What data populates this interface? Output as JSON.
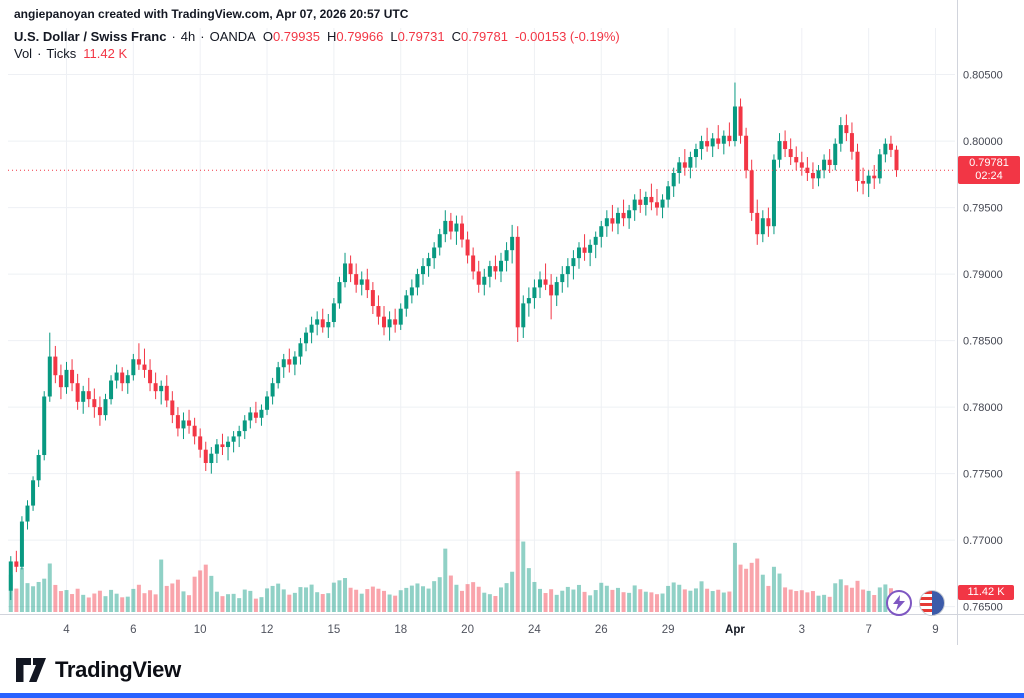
{
  "attribution": "angiepanoyan created with TradingView.com, Apr 07, 2026 20:57 UTC",
  "legend": {
    "symbol_title": "U.S. Dollar / Swiss Franc",
    "dot": "·",
    "interval": "4h",
    "exchange": "OANDA",
    "ohlc": [
      {
        "label": "O",
        "value": "0.79935"
      },
      {
        "label": "H",
        "value": "0.79966"
      },
      {
        "label": "L",
        "value": "0.79731"
      },
      {
        "label": "C",
        "value": "0.79781"
      }
    ],
    "change": "-0.00153 (-0.19%)",
    "volume_label": "Vol",
    "volume_type": "Ticks",
    "volume_value": "11.42 K"
  },
  "price_badge": {
    "price": "0.79781",
    "countdown": "02:24"
  },
  "volume_badge": "11.42 K",
  "logo_text": "TradingView",
  "colors": {
    "up": "#089981",
    "down": "#f23645",
    "grid": "#eef0f4",
    "axis_line": "#d1d4dc",
    "axis_text": "#434651",
    "accent_blue": "#2962ff",
    "badge": "#f23645"
  },
  "chart_data": {
    "type": "candlestick",
    "title": "U.S. Dollar / Swiss Franc · 4h · OANDA",
    "volume_overlay": "Vol · Ticks",
    "ylim": [
      0.7646,
      0.8085
    ],
    "slots": 170,
    "price_line": 0.79781,
    "y_ticks": [
      0.805,
      0.8,
      0.795,
      0.79,
      0.785,
      0.78,
      0.775,
      0.77,
      0.765
    ],
    "x_ticks": [
      {
        "i": 10,
        "l": "4"
      },
      {
        "i": 22,
        "l": "6"
      },
      {
        "i": 34,
        "l": "10"
      },
      {
        "i": 46,
        "l": "12"
      },
      {
        "i": 58,
        "l": "15"
      },
      {
        "i": 70,
        "l": "18"
      },
      {
        "i": 82,
        "l": "20"
      },
      {
        "i": 94,
        "l": "24"
      },
      {
        "i": 106,
        "l": "26"
      },
      {
        "i": 118,
        "l": "29"
      },
      {
        "i": 130,
        "l": "Apr",
        "major": true
      },
      {
        "i": 142,
        "l": "3"
      },
      {
        "i": 154,
        "l": "7"
      },
      {
        "i": 166,
        "l": "9"
      }
    ],
    "candles": [
      [
        0.7662,
        0.7688,
        0.7655,
        0.7684,
        22.6
      ],
      [
        0.7684,
        0.7692,
        0.7676,
        0.768,
        14.2
      ],
      [
        0.768,
        0.7718,
        0.7678,
        0.7714,
        26.8
      ],
      [
        0.7714,
        0.773,
        0.7708,
        0.7726,
        17.5
      ],
      [
        0.7726,
        0.7748,
        0.7722,
        0.7745,
        15.6
      ],
      [
        0.7745,
        0.7768,
        0.774,
        0.7764,
        18.2
      ],
      [
        0.7764,
        0.7812,
        0.776,
        0.7808,
        20.2
      ],
      [
        0.7808,
        0.7856,
        0.7804,
        0.7838,
        29.4
      ],
      [
        0.7838,
        0.7846,
        0.7818,
        0.7824,
        16.4
      ],
      [
        0.7824,
        0.7832,
        0.7806,
        0.7815,
        12.7
      ],
      [
        0.7815,
        0.7834,
        0.781,
        0.7828,
        13.3
      ],
      [
        0.7828,
        0.7836,
        0.7812,
        0.7818,
        10.9
      ],
      [
        0.7818,
        0.7825,
        0.7798,
        0.7804,
        14.1
      ],
      [
        0.7804,
        0.7816,
        0.7795,
        0.7812,
        10.4
      ],
      [
        0.7812,
        0.7822,
        0.78,
        0.7806,
        8.8
      ],
      [
        0.7806,
        0.7814,
        0.7792,
        0.78,
        11.2
      ],
      [
        0.78,
        0.7808,
        0.7786,
        0.7794,
        12.9
      ],
      [
        0.7794,
        0.781,
        0.779,
        0.7806,
        9.6
      ],
      [
        0.7806,
        0.7824,
        0.7802,
        0.782,
        13.4
      ],
      [
        0.782,
        0.7832,
        0.7814,
        0.7826,
        11.1
      ],
      [
        0.7826,
        0.783,
        0.7812,
        0.7818,
        8.9
      ],
      [
        0.7818,
        0.7828,
        0.781,
        0.7824,
        9.3
      ],
      [
        0.7824,
        0.784,
        0.782,
        0.7836,
        14.0
      ],
      [
        0.7836,
        0.7848,
        0.7828,
        0.7832,
        16.5
      ],
      [
        0.7832,
        0.7844,
        0.7822,
        0.7828,
        11.4
      ],
      [
        0.7828,
        0.7836,
        0.7812,
        0.7818,
        13.2
      ],
      [
        0.7818,
        0.7826,
        0.7806,
        0.7812,
        10.7
      ],
      [
        0.7812,
        0.782,
        0.7802,
        0.7816,
        31.8
      ],
      [
        0.7816,
        0.7824,
        0.78,
        0.7805,
        15.8
      ],
      [
        0.7805,
        0.7812,
        0.7788,
        0.7794,
        17.3
      ],
      [
        0.7794,
        0.78,
        0.7778,
        0.7784,
        19.6
      ],
      [
        0.7784,
        0.7796,
        0.7776,
        0.779,
        12.5
      ],
      [
        0.779,
        0.7798,
        0.778,
        0.7786,
        10.2
      ],
      [
        0.7786,
        0.7792,
        0.7772,
        0.7778,
        21.4
      ],
      [
        0.7778,
        0.7784,
        0.7762,
        0.7768,
        25.2
      ],
      [
        0.7768,
        0.7774,
        0.7752,
        0.7758,
        28.7
      ],
      [
        0.7758,
        0.777,
        0.775,
        0.7765,
        21.9
      ],
      [
        0.7765,
        0.7776,
        0.7758,
        0.7772,
        12.3
      ],
      [
        0.7772,
        0.778,
        0.7764,
        0.777,
        9.6
      ],
      [
        0.777,
        0.7778,
        0.776,
        0.7774,
        10.8
      ],
      [
        0.7774,
        0.7782,
        0.7766,
        0.7778,
        11.0
      ],
      [
        0.7778,
        0.7786,
        0.777,
        0.7782,
        8.4
      ],
      [
        0.7782,
        0.7794,
        0.7776,
        0.779,
        13.6
      ],
      [
        0.779,
        0.78,
        0.7784,
        0.7796,
        12.8
      ],
      [
        0.7796,
        0.7804,
        0.7788,
        0.7792,
        8.1
      ],
      [
        0.7792,
        0.7802,
        0.7786,
        0.7798,
        9.0
      ],
      [
        0.7798,
        0.7812,
        0.7794,
        0.7808,
        14.3
      ],
      [
        0.7808,
        0.7822,
        0.7802,
        0.7818,
        15.8
      ],
      [
        0.7818,
        0.7834,
        0.7814,
        0.783,
        17.2
      ],
      [
        0.783,
        0.784,
        0.7822,
        0.7836,
        13.7
      ],
      [
        0.7836,
        0.7844,
        0.7826,
        0.7832,
        10.5
      ],
      [
        0.7832,
        0.7842,
        0.7824,
        0.7838,
        11.6
      ],
      [
        0.7838,
        0.7852,
        0.7832,
        0.7848,
        15.1
      ],
      [
        0.7848,
        0.786,
        0.7842,
        0.7856,
        14.9
      ],
      [
        0.7856,
        0.7868,
        0.7848,
        0.7862,
        16.6
      ],
      [
        0.7862,
        0.7872,
        0.7854,
        0.7866,
        12.0
      ],
      [
        0.7866,
        0.7874,
        0.7856,
        0.786,
        10.9
      ],
      [
        0.786,
        0.787,
        0.7852,
        0.7864,
        11.4
      ],
      [
        0.7864,
        0.7882,
        0.786,
        0.7878,
        17.8
      ],
      [
        0.7878,
        0.7898,
        0.7874,
        0.7894,
        19.2
      ],
      [
        0.7894,
        0.7916,
        0.789,
        0.7908,
        20.6
      ],
      [
        0.7908,
        0.7914,
        0.7894,
        0.79,
        14.7
      ],
      [
        0.79,
        0.7908,
        0.7886,
        0.7892,
        13.5
      ],
      [
        0.7892,
        0.7902,
        0.7884,
        0.7896,
        11.1
      ],
      [
        0.7896,
        0.7904,
        0.7882,
        0.7888,
        13.9
      ],
      [
        0.7888,
        0.7894,
        0.787,
        0.7876,
        15.4
      ],
      [
        0.7876,
        0.7884,
        0.7862,
        0.7868,
        14.1
      ],
      [
        0.7868,
        0.7876,
        0.7854,
        0.786,
        12.8
      ],
      [
        0.786,
        0.7872,
        0.785,
        0.7866,
        10.6
      ],
      [
        0.7866,
        0.7874,
        0.7856,
        0.7862,
        9.9
      ],
      [
        0.7862,
        0.7878,
        0.7858,
        0.7874,
        13.2
      ],
      [
        0.7874,
        0.7888,
        0.7868,
        0.7884,
        14.6
      ],
      [
        0.7884,
        0.7896,
        0.7878,
        0.789,
        16.0
      ],
      [
        0.789,
        0.7904,
        0.7884,
        0.79,
        17.3
      ],
      [
        0.79,
        0.7912,
        0.7892,
        0.7906,
        15.6
      ],
      [
        0.7906,
        0.7916,
        0.7898,
        0.7912,
        14.2
      ],
      [
        0.7912,
        0.7924,
        0.7904,
        0.792,
        18.7
      ],
      [
        0.792,
        0.7934,
        0.7914,
        0.793,
        21.1
      ],
      [
        0.793,
        0.7948,
        0.7924,
        0.794,
        38.4
      ],
      [
        0.794,
        0.7946,
        0.7926,
        0.7932,
        22.1
      ],
      [
        0.7932,
        0.7944,
        0.7922,
        0.7938,
        16.5
      ],
      [
        0.7938,
        0.7944,
        0.792,
        0.7926,
        12.8
      ],
      [
        0.7926,
        0.7932,
        0.7908,
        0.7914,
        16.9
      ],
      [
        0.7914,
        0.792,
        0.7896,
        0.7902,
        18.1
      ],
      [
        0.7902,
        0.791,
        0.7886,
        0.7892,
        15.3
      ],
      [
        0.7892,
        0.7904,
        0.7884,
        0.7898,
        11.7
      ],
      [
        0.7898,
        0.791,
        0.789,
        0.7906,
        10.8
      ],
      [
        0.7906,
        0.7914,
        0.7896,
        0.7902,
        9.7
      ],
      [
        0.7902,
        0.7916,
        0.7894,
        0.791,
        14.9
      ],
      [
        0.791,
        0.7924,
        0.7902,
        0.7918,
        17.5
      ],
      [
        0.7918,
        0.7937,
        0.7908,
        0.7928,
        24.4
      ],
      [
        0.7928,
        0.7936,
        0.7849,
        0.786,
        85.3
      ],
      [
        0.786,
        0.7884,
        0.7852,
        0.7878,
        42.7
      ],
      [
        0.7878,
        0.789,
        0.7868,
        0.7882,
        26.6
      ],
      [
        0.7882,
        0.7896,
        0.7874,
        0.789,
        18.2
      ],
      [
        0.789,
        0.7902,
        0.7882,
        0.7896,
        14.0
      ],
      [
        0.7896,
        0.7908,
        0.7888,
        0.7892,
        11.5
      ],
      [
        0.7892,
        0.79,
        0.7866,
        0.7884,
        13.8
      ],
      [
        0.7884,
        0.7898,
        0.7876,
        0.7894,
        10.4
      ],
      [
        0.7894,
        0.7906,
        0.7886,
        0.79,
        12.9
      ],
      [
        0.79,
        0.7912,
        0.789,
        0.7906,
        15.2
      ],
      [
        0.7906,
        0.7918,
        0.7896,
        0.7912,
        13.6
      ],
      [
        0.7912,
        0.7924,
        0.7904,
        0.792,
        16.4
      ],
      [
        0.792,
        0.793,
        0.791,
        0.7916,
        12.2
      ],
      [
        0.7916,
        0.7926,
        0.7906,
        0.7922,
        10.1
      ],
      [
        0.7922,
        0.7932,
        0.7912,
        0.7928,
        13.3
      ],
      [
        0.7928,
        0.794,
        0.792,
        0.7936,
        17.7
      ],
      [
        0.7936,
        0.7948,
        0.7928,
        0.7942,
        15.9
      ],
      [
        0.7942,
        0.7952,
        0.7932,
        0.7938,
        13.4
      ],
      [
        0.7938,
        0.795,
        0.793,
        0.7946,
        14.6
      ],
      [
        0.7946,
        0.7956,
        0.7936,
        0.7942,
        12.0
      ],
      [
        0.7942,
        0.7952,
        0.7934,
        0.7948,
        11.6
      ],
      [
        0.7948,
        0.796,
        0.794,
        0.7956,
        16.1
      ],
      [
        0.7956,
        0.7964,
        0.7946,
        0.7952,
        13.8
      ],
      [
        0.7952,
        0.7962,
        0.7944,
        0.7958,
        12.3
      ],
      [
        0.7958,
        0.7968,
        0.7948,
        0.7954,
        11.9
      ],
      [
        0.7954,
        0.7964,
        0.7944,
        0.795,
        10.8
      ],
      [
        0.795,
        0.796,
        0.7942,
        0.7956,
        11.2
      ],
      [
        0.7956,
        0.797,
        0.795,
        0.7966,
        15.8
      ],
      [
        0.7966,
        0.798,
        0.7958,
        0.7976,
        17.9
      ],
      [
        0.7976,
        0.7988,
        0.7968,
        0.7984,
        16.5
      ],
      [
        0.7984,
        0.7994,
        0.7974,
        0.798,
        13.7
      ],
      [
        0.798,
        0.7992,
        0.7972,
        0.7988,
        12.9
      ],
      [
        0.7988,
        0.7998,
        0.798,
        0.7994,
        14.3
      ],
      [
        0.7994,
        0.8004,
        0.7986,
        0.8,
        18.6
      ],
      [
        0.8,
        0.801,
        0.7992,
        0.7996,
        14.1
      ],
      [
        0.7996,
        0.8006,
        0.7988,
        0.8002,
        12.7
      ],
      [
        0.8002,
        0.8012,
        0.7994,
        0.7998,
        13.5
      ],
      [
        0.7998,
        0.8008,
        0.799,
        0.8004,
        11.8
      ],
      [
        0.8004,
        0.8014,
        0.7996,
        0.8,
        12.4
      ],
      [
        0.8,
        0.8044,
        0.7996,
        0.8026,
        41.9
      ],
      [
        0.8026,
        0.8032,
        0.7998,
        0.8004,
        28.7
      ],
      [
        0.8004,
        0.801,
        0.7972,
        0.7978,
        26.2
      ],
      [
        0.7978,
        0.7986,
        0.794,
        0.7946,
        29.8
      ],
      [
        0.7946,
        0.7956,
        0.7922,
        0.793,
        32.4
      ],
      [
        0.793,
        0.7948,
        0.7924,
        0.7942,
        22.6
      ],
      [
        0.7942,
        0.795,
        0.7928,
        0.7936,
        15.8
      ],
      [
        0.7936,
        0.799,
        0.793,
        0.7986,
        27.4
      ],
      [
        0.7986,
        0.8006,
        0.798,
        0.8,
        23.3
      ],
      [
        0.8,
        0.8008,
        0.7988,
        0.7994,
        14.9
      ],
      [
        0.7994,
        0.8002,
        0.7982,
        0.7988,
        13.6
      ],
      [
        0.7988,
        0.7996,
        0.7978,
        0.7984,
        12.7
      ],
      [
        0.7984,
        0.7992,
        0.7974,
        0.798,
        13.2
      ],
      [
        0.798,
        0.7988,
        0.797,
        0.7976,
        11.9
      ],
      [
        0.7976,
        0.7984,
        0.7964,
        0.7972,
        12.7
      ],
      [
        0.7972,
        0.7982,
        0.7966,
        0.7978,
        9.9
      ],
      [
        0.7978,
        0.799,
        0.7972,
        0.7986,
        10.4
      ],
      [
        0.7986,
        0.7994,
        0.7976,
        0.7982,
        9.2
      ],
      [
        0.7982,
        0.8002,
        0.7978,
        0.7998,
        17.4
      ],
      [
        0.7998,
        0.8018,
        0.7992,
        0.8012,
        19.8
      ],
      [
        0.8012,
        0.802,
        0.8,
        0.8006,
        16.2
      ],
      [
        0.8006,
        0.8014,
        0.7986,
        0.7992,
        14.7
      ],
      [
        0.7992,
        0.7998,
        0.7962,
        0.797,
        18.9
      ],
      [
        0.797,
        0.798,
        0.796,
        0.7968,
        13.6
      ],
      [
        0.7968,
        0.7978,
        0.7958,
        0.7974,
        12.8
      ],
      [
        0.7974,
        0.7982,
        0.7964,
        0.7972,
        10.3
      ],
      [
        0.7972,
        0.7994,
        0.7968,
        0.799,
        14.9
      ],
      [
        0.799,
        0.8002,
        0.7984,
        0.7998,
        16.7
      ],
      [
        0.7998,
        0.8004,
        0.7988,
        0.79934,
        14.4
      ],
      [
        0.79935,
        0.79966,
        0.79731,
        0.79781,
        11.42
      ]
    ]
  }
}
